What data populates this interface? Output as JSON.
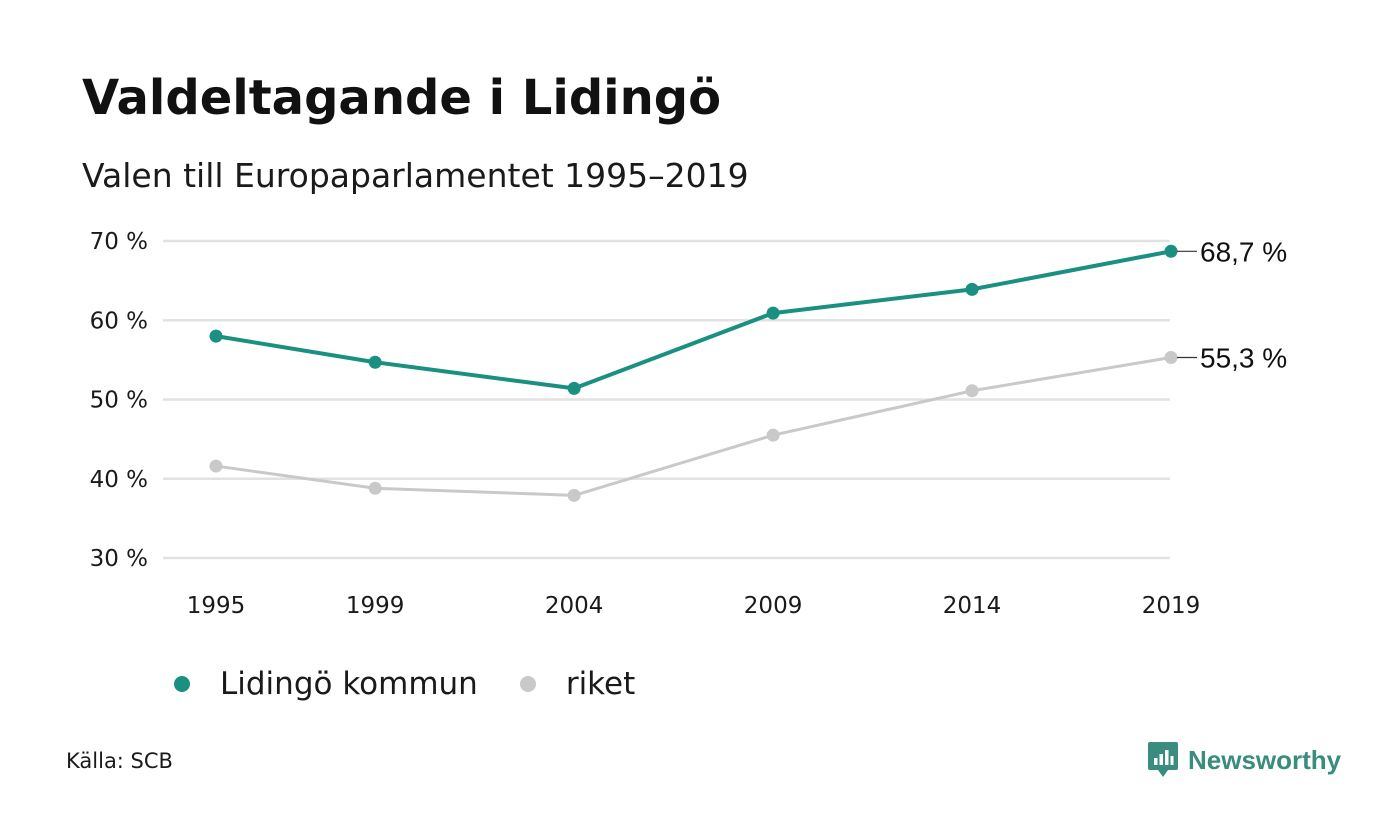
{
  "title": "Valdeltagande i Lidingö",
  "subtitle": "Valen till Europaparlamentet 1995–2019",
  "source": "Källa: SCB",
  "brand": "Newsworthy",
  "colors": {
    "lidingo": "#1a9080",
    "riket": "#c9c9c9",
    "grid": "#e2e2e2",
    "brand": "#3a8c7e"
  },
  "chart_data": {
    "type": "line",
    "x": [
      1995,
      1999,
      2004,
      2009,
      2014,
      2019
    ],
    "x_tick_labels": [
      "1995",
      "1999",
      "2004",
      "2009",
      "2014",
      "2019"
    ],
    "y_ticks": [
      30,
      40,
      50,
      60,
      70
    ],
    "y_tick_labels": [
      "30 %",
      "40 %",
      "50 %",
      "60 %",
      "70 %"
    ],
    "ylim": [
      30,
      70
    ],
    "grid": true,
    "legend_position": "bottom-left",
    "series": [
      {
        "key": "lidingo",
        "name": "Lidingö kommun",
        "values": [
          58.0,
          54.7,
          51.4,
          60.9,
          63.9,
          68.7
        ],
        "end_label": "68,7 %"
      },
      {
        "key": "riket",
        "name": "riket",
        "values": [
          41.6,
          38.8,
          37.9,
          45.5,
          51.1,
          55.3
        ],
        "end_label": "55,3 %"
      }
    ]
  }
}
